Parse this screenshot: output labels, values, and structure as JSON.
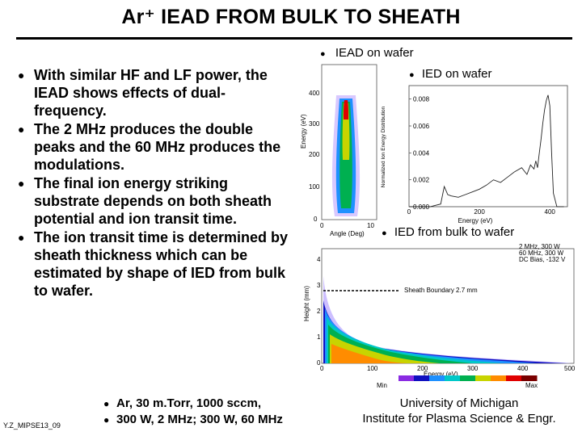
{
  "title": "Ar⁺ IEAD FROM BULK TO SHEATH",
  "bullets": [
    "With similar HF and LF power, the IEAD shows effects of dual-frequency.",
    "The 2 MHz produces the double peaks and the 60 MHz produces the modulations.",
    "The final ion energy striking substrate depends on both sheath potential and ion transit time.",
    "The ion transit time is determined by sheath thickness which can be estimated by shape of IED from bulk to wafer."
  ],
  "captions": {
    "iead": "IEAD on wafer",
    "ied": "IED on wafer",
    "bulk": "IED from bulk to wafer"
  },
  "iead_plot": {
    "ylabel": "Energy (eV)",
    "xlabel": "Angle (Deg)",
    "yticks": [
      "0",
      "100",
      "200",
      "300",
      "400"
    ],
    "xticks": [
      "0",
      "10"
    ]
  },
  "chart_data": {
    "type": "line",
    "xlabel": "Energy (eV)",
    "ylabel": "Normalized Ion Energy Distribution",
    "xlim": [
      0,
      450
    ],
    "ylim": [
      0,
      0.009
    ],
    "xticks": [
      "0",
      "200",
      "400"
    ],
    "yticks": [
      "0.000",
      "0.002",
      "0.004",
      "0.006",
      "0.008"
    ],
    "x": [
      0,
      30,
      60,
      90,
      100,
      110,
      120,
      140,
      160,
      180,
      200,
      220,
      240,
      260,
      280,
      300,
      320,
      335,
      345,
      355,
      360,
      365,
      370,
      375,
      380,
      385,
      390,
      395,
      400,
      405,
      410,
      420,
      440
    ],
    "y": [
      0,
      0,
      0,
      0.0002,
      0.0015,
      0.0009,
      0.0008,
      0.0007,
      0.0009,
      0.0011,
      0.0013,
      0.0016,
      0.002,
      0.0018,
      0.0022,
      0.0026,
      0.0029,
      0.0024,
      0.0031,
      0.0028,
      0.0034,
      0.0029,
      0.004,
      0.005,
      0.0062,
      0.0072,
      0.0079,
      0.0083,
      0.0075,
      0.004,
      0.001,
      0,
      0
    ]
  },
  "bulk_plot": {
    "ylabel": "Height (mm)",
    "xlabel": "Energy (eV)",
    "xticks": [
      "0",
      "100",
      "200",
      "300",
      "400",
      "500"
    ],
    "yticks": [
      "0",
      "1",
      "2",
      "3",
      "4"
    ],
    "legend": [
      "2 MHz, 300 W",
      "60 MHz, 300 W",
      "DC Bias, -132 V"
    ],
    "sheath_label": "Sheath Boundary 2.7 mm",
    "colorbar_min": "Min",
    "colorbar_max": "Max",
    "colors": [
      "#ffffff",
      "#8a2be2",
      "#1010c0",
      "#1e90ff",
      "#00c8c8",
      "#00b050",
      "#c8d400",
      "#ff8c00",
      "#e00000",
      "#7a0000"
    ]
  },
  "conditions": [
    "Ar, 30 m.Torr, 1000 sccm,",
    "300 W, 2 MHz; 300 W, 60 MHz"
  ],
  "footer_left": "Y.Z_MIPSE13_09",
  "university": [
    "University of Michigan",
    "Institute for Plasma Science & Engr."
  ]
}
